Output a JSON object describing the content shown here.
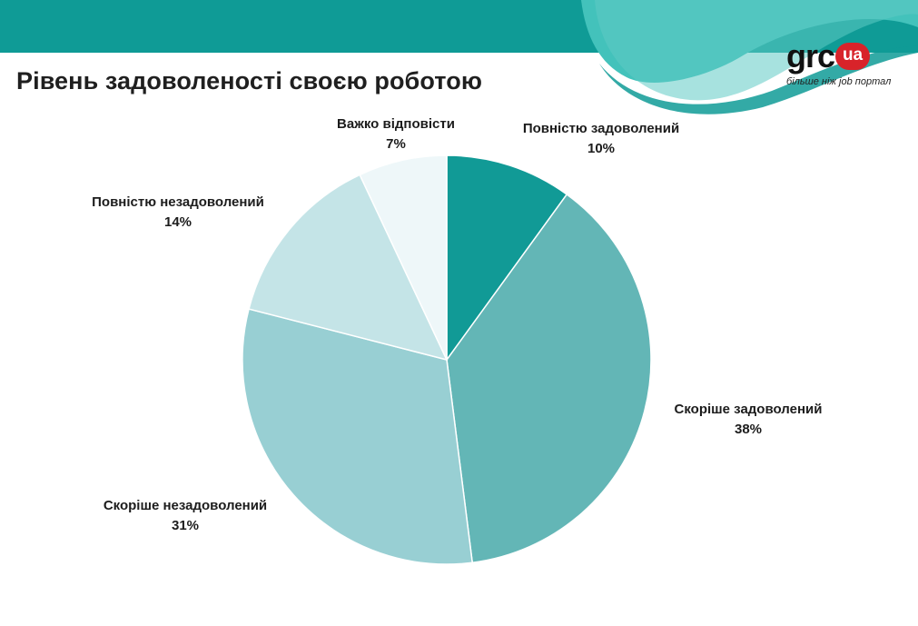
{
  "header": {
    "title": "Рівень задоволеності своєю роботою",
    "banner_color": "#0f9b96",
    "banner_light": "#43c2bb"
  },
  "logo": {
    "word": "grc",
    "badge": "ua",
    "tagline": "більше ніж job портал",
    "badge_color": "#d8232a"
  },
  "chart_data": {
    "type": "pie",
    "start": "12 o'clock, clockwise",
    "slices": [
      {
        "label": "Повністю задоволений",
        "value": 10,
        "value_label": "10%",
        "color": "#119a96"
      },
      {
        "label": "Скоріше задоволений",
        "value": 38,
        "value_label": "38%",
        "color": "#63b6b6"
      },
      {
        "label": "Скоріше незадоволений",
        "value": 31,
        "value_label": "31%",
        "color": "#98cfd3"
      },
      {
        "label": "Повністю незадоволений",
        "value": 14,
        "value_label": "14%",
        "color": "#c4e4e7"
      },
      {
        "label": "Важко відповісти",
        "value": 7,
        "value_label": "7%",
        "color": "#eef7f9"
      }
    ]
  }
}
